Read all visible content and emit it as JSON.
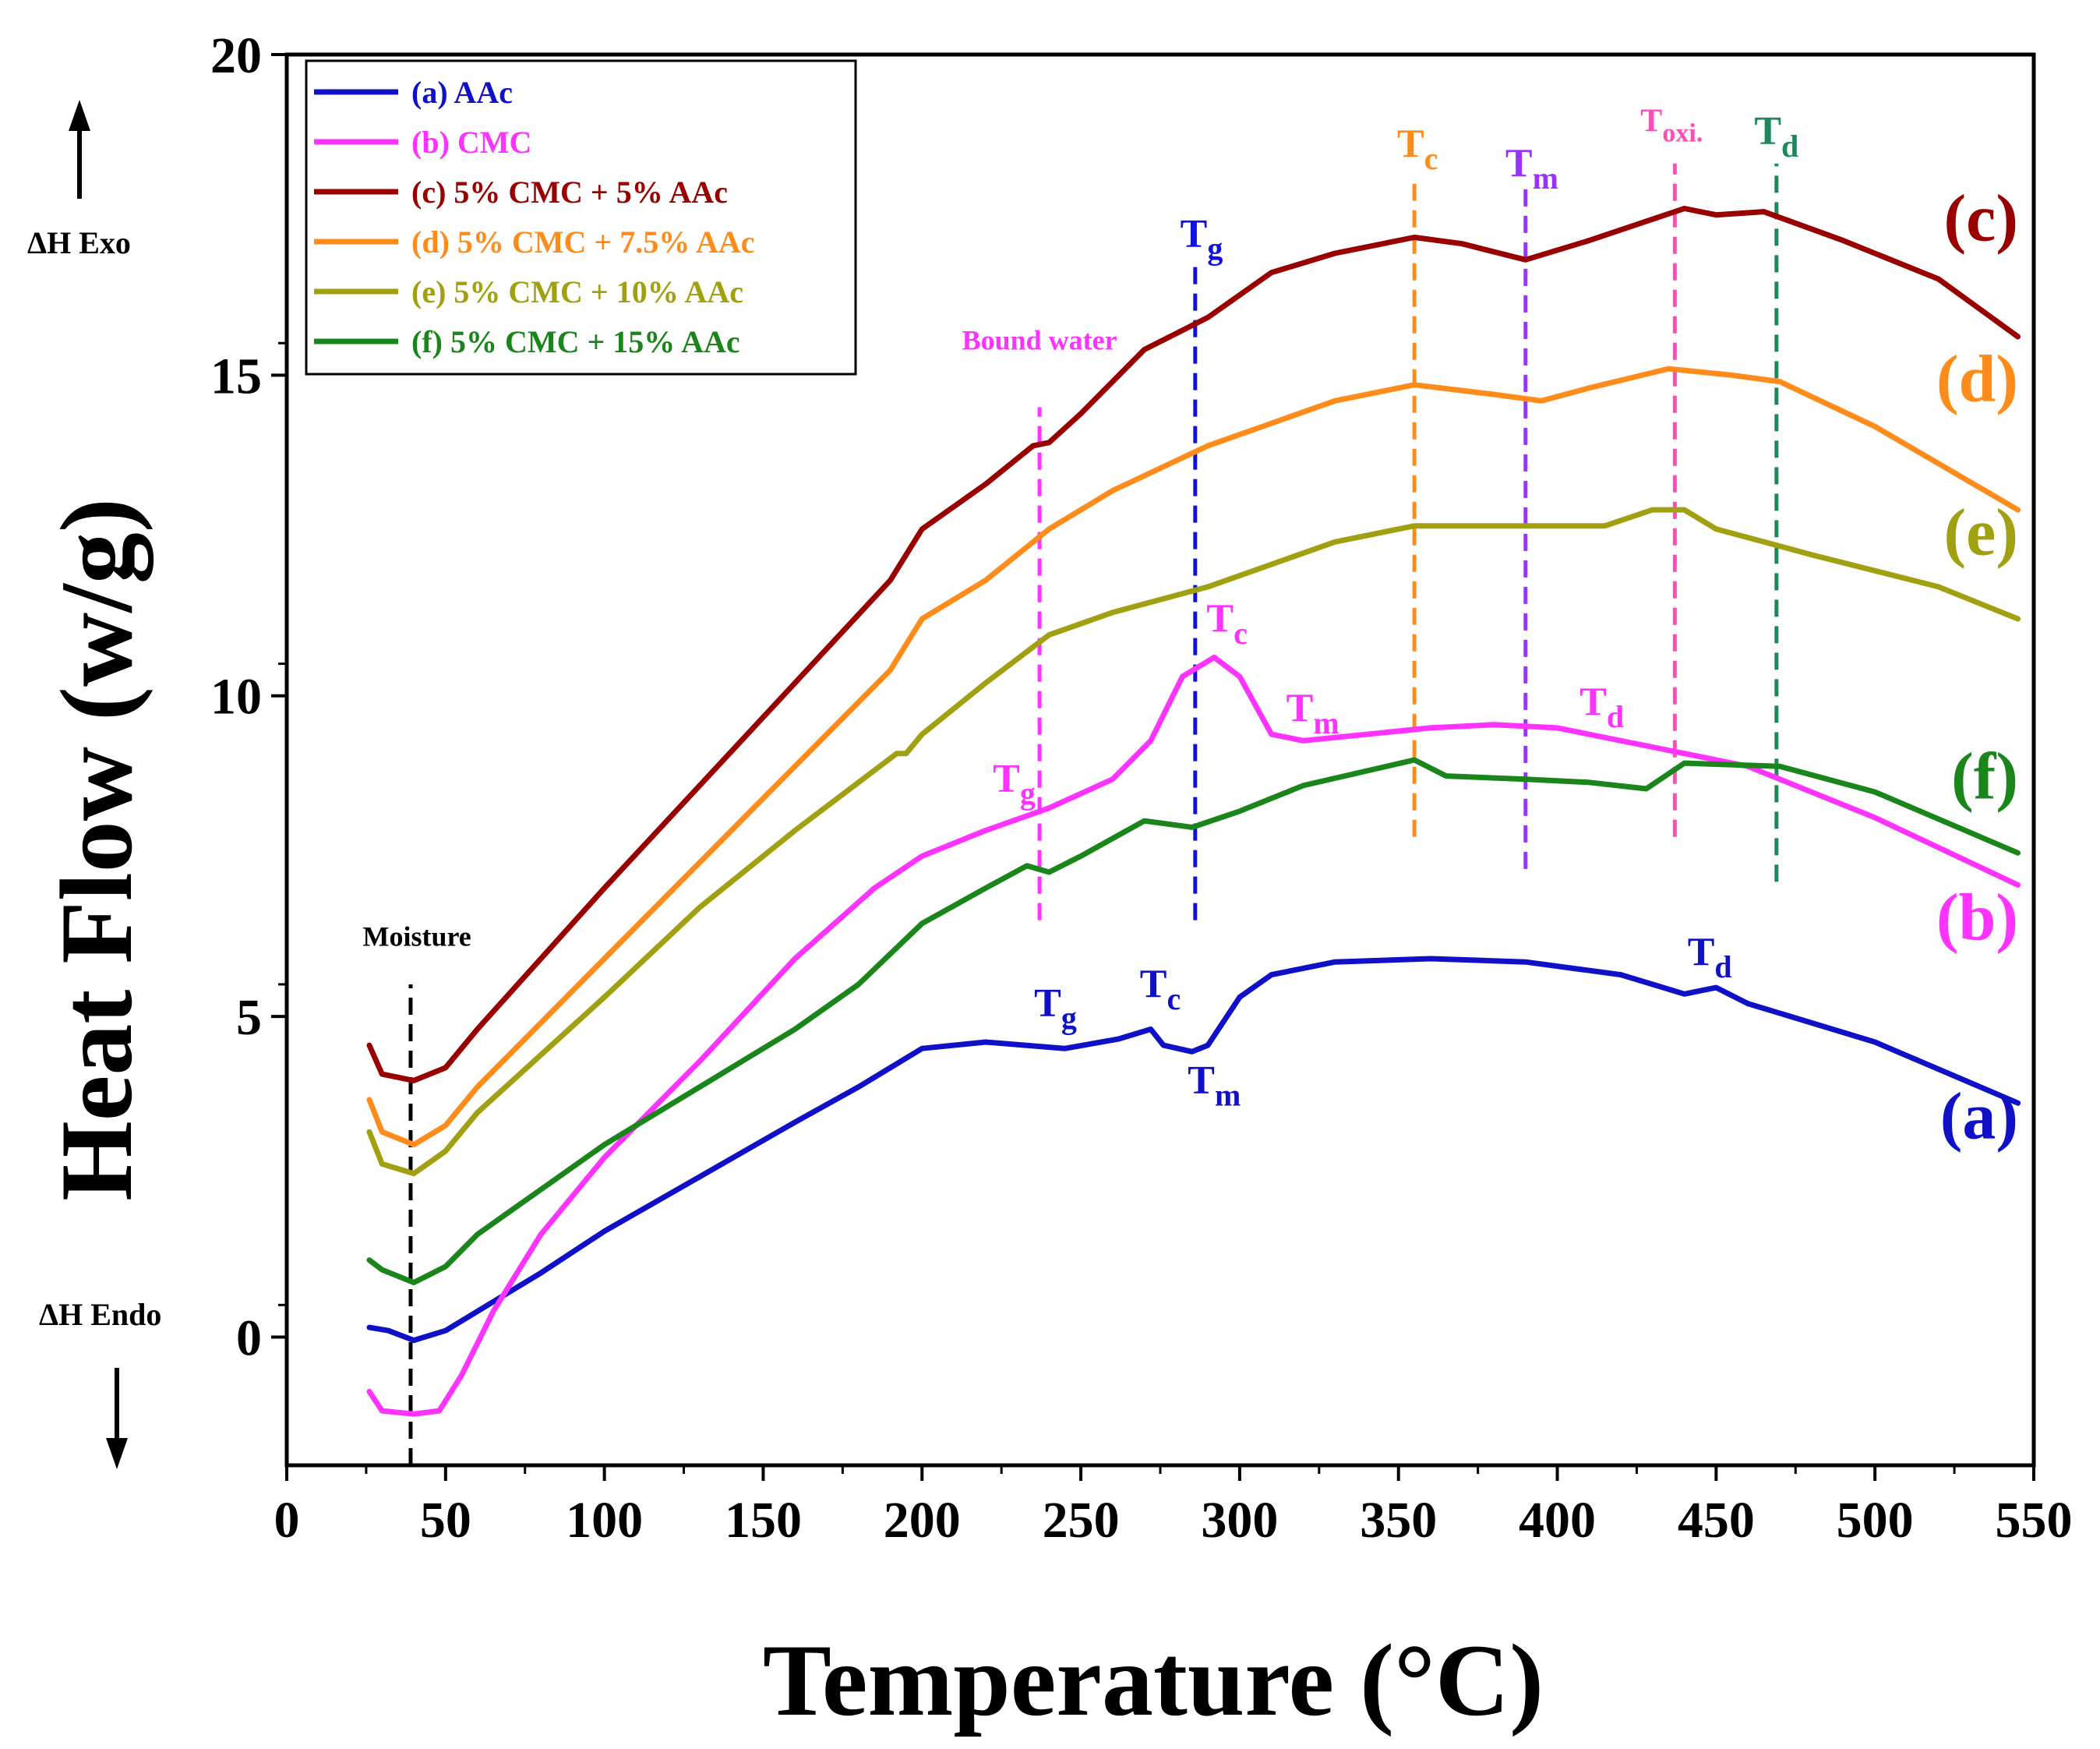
{
  "chart_data": {
    "type": "line",
    "xlabel": "Temperature (°C)",
    "ylabel": "Heat Flow (w/g)",
    "xlim": [
      0,
      550
    ],
    "ylim": [
      -2,
      20
    ],
    "xticks": [
      0,
      50,
      100,
      150,
      200,
      250,
      300,
      350,
      400,
      450,
      500,
      550
    ],
    "yticks": [
      0,
      5,
      10,
      15,
      20
    ],
    "grid": false,
    "legend_position": "top-left",
    "direction_labels": {
      "exo": "ΔH Exo",
      "endo": "ΔH Endo"
    },
    "series": [
      {
        "id": "a",
        "name": "(a) AAc",
        "end_label": "(a)",
        "color": "#1010c8",
        "label_y": 3.1,
        "points": [
          [
            26,
            0.15
          ],
          [
            32,
            0.1
          ],
          [
            40,
            -0.05
          ],
          [
            50,
            0.1
          ],
          [
            60,
            0.4
          ],
          [
            80,
            1.0
          ],
          [
            100,
            1.65
          ],
          [
            130,
            2.5
          ],
          [
            160,
            3.35
          ],
          [
            180,
            3.9
          ],
          [
            200,
            4.5
          ],
          [
            220,
            4.6
          ],
          [
            245,
            4.5
          ],
          [
            262,
            4.65
          ],
          [
            272,
            4.8
          ],
          [
            276,
            4.55
          ],
          [
            285,
            4.45
          ],
          [
            290,
            4.55
          ],
          [
            300,
            5.3
          ],
          [
            310,
            5.65
          ],
          [
            330,
            5.85
          ],
          [
            360,
            5.9
          ],
          [
            390,
            5.85
          ],
          [
            420,
            5.65
          ],
          [
            440,
            5.35
          ],
          [
            450,
            5.45
          ],
          [
            460,
            5.2
          ],
          [
            500,
            4.6
          ],
          [
            545,
            3.65
          ]
        ]
      },
      {
        "id": "b",
        "name": "(b) CMC",
        "end_label": "(b)",
        "color": "#ff33ff",
        "label_y": 6.2,
        "points": [
          [
            26,
            -0.85
          ],
          [
            30,
            -1.15
          ],
          [
            40,
            -1.2
          ],
          [
            48,
            -1.15
          ],
          [
            55,
            -0.6
          ],
          [
            65,
            0.4
          ],
          [
            80,
            1.6
          ],
          [
            100,
            2.8
          ],
          [
            130,
            4.3
          ],
          [
            160,
            5.9
          ],
          [
            185,
            7.0
          ],
          [
            200,
            7.5
          ],
          [
            220,
            7.9
          ],
          [
            240,
            8.25
          ],
          [
            260,
            8.7
          ],
          [
            272,
            9.3
          ],
          [
            282,
            10.3
          ],
          [
            292,
            10.6
          ],
          [
            300,
            10.3
          ],
          [
            310,
            9.4
          ],
          [
            320,
            9.3
          ],
          [
            360,
            9.5
          ],
          [
            380,
            9.55
          ],
          [
            400,
            9.5
          ],
          [
            430,
            9.2
          ],
          [
            460,
            8.9
          ],
          [
            500,
            8.1
          ],
          [
            545,
            7.05
          ]
        ]
      },
      {
        "id": "c",
        "name": "(c) 5% CMC + 5% AAc",
        "end_label": "(c)",
        "color": "#990000",
        "label_y": 17.1,
        "points": [
          [
            26,
            4.55
          ],
          [
            30,
            4.1
          ],
          [
            40,
            4.0
          ],
          [
            50,
            4.2
          ],
          [
            60,
            4.8
          ],
          [
            80,
            5.9
          ],
          [
            100,
            7.0
          ],
          [
            130,
            8.6
          ],
          [
            160,
            10.2
          ],
          [
            190,
            11.8
          ],
          [
            200,
            12.6
          ],
          [
            220,
            13.3
          ],
          [
            235,
            13.9
          ],
          [
            240,
            13.95
          ],
          [
            250,
            14.4
          ],
          [
            270,
            15.4
          ],
          [
            290,
            15.9
          ],
          [
            310,
            16.6
          ],
          [
            330,
            16.9
          ],
          [
            355,
            17.15
          ],
          [
            370,
            17.05
          ],
          [
            390,
            16.8
          ],
          [
            410,
            17.1
          ],
          [
            440,
            17.6
          ],
          [
            450,
            17.5
          ],
          [
            465,
            17.55
          ],
          [
            490,
            17.1
          ],
          [
            520,
            16.5
          ],
          [
            545,
            15.6
          ]
        ]
      },
      {
        "id": "d",
        "name": "(d) 5% CMC + 7.5% AAc",
        "end_label": "(d)",
        "color": "#ff8c1a",
        "label_y": 14.6,
        "points": [
          [
            26,
            3.7
          ],
          [
            30,
            3.2
          ],
          [
            40,
            3.0
          ],
          [
            50,
            3.3
          ],
          [
            60,
            3.9
          ],
          [
            80,
            4.9
          ],
          [
            100,
            5.9
          ],
          [
            130,
            7.4
          ],
          [
            160,
            8.9
          ],
          [
            190,
            10.4
          ],
          [
            200,
            11.2
          ],
          [
            220,
            11.8
          ],
          [
            240,
            12.6
          ],
          [
            260,
            13.2
          ],
          [
            290,
            13.9
          ],
          [
            330,
            14.6
          ],
          [
            355,
            14.85
          ],
          [
            380,
            14.7
          ],
          [
            395,
            14.6
          ],
          [
            410,
            14.8
          ],
          [
            435,
            15.1
          ],
          [
            455,
            15.0
          ],
          [
            470,
            14.9
          ],
          [
            500,
            14.2
          ],
          [
            545,
            12.9
          ]
        ]
      },
      {
        "id": "e",
        "name": "(e) 5% CMC + 10% AAc",
        "end_label": "(e)",
        "color": "#a0a010",
        "label_y": 12.2,
        "points": [
          [
            26,
            3.2
          ],
          [
            30,
            2.7
          ],
          [
            40,
            2.55
          ],
          [
            50,
            2.9
          ],
          [
            60,
            3.5
          ],
          [
            80,
            4.4
          ],
          [
            100,
            5.3
          ],
          [
            130,
            6.7
          ],
          [
            160,
            7.9
          ],
          [
            192,
            9.1
          ],
          [
            195,
            9.1
          ],
          [
            200,
            9.4
          ],
          [
            220,
            10.2
          ],
          [
            240,
            10.95
          ],
          [
            260,
            11.3
          ],
          [
            290,
            11.7
          ],
          [
            330,
            12.4
          ],
          [
            355,
            12.65
          ],
          [
            390,
            12.65
          ],
          [
            415,
            12.65
          ],
          [
            430,
            12.9
          ],
          [
            440,
            12.9
          ],
          [
            450,
            12.6
          ],
          [
            480,
            12.2
          ],
          [
            520,
            11.7
          ],
          [
            545,
            11.2
          ]
        ]
      },
      {
        "id": "f",
        "name": "(f) 5% CMC + 15% AAc",
        "end_label": "(f)",
        "color": "#1a851a",
        "label_y": 8.4,
        "points": [
          [
            26,
            1.2
          ],
          [
            30,
            1.05
          ],
          [
            40,
            0.85
          ],
          [
            50,
            1.1
          ],
          [
            60,
            1.6
          ],
          [
            80,
            2.3
          ],
          [
            100,
            3.0
          ],
          [
            130,
            3.9
          ],
          [
            160,
            4.8
          ],
          [
            180,
            5.5
          ],
          [
            200,
            6.45
          ],
          [
            220,
            7.0
          ],
          [
            233,
            7.35
          ],
          [
            240,
            7.25
          ],
          [
            250,
            7.5
          ],
          [
            270,
            8.05
          ],
          [
            285,
            7.95
          ],
          [
            300,
            8.2
          ],
          [
            320,
            8.6
          ],
          [
            355,
            9.0
          ],
          [
            365,
            8.75
          ],
          [
            390,
            8.7
          ],
          [
            410,
            8.65
          ],
          [
            428,
            8.55
          ],
          [
            440,
            8.95
          ],
          [
            470,
            8.9
          ],
          [
            500,
            8.5
          ],
          [
            545,
            7.55
          ]
        ]
      }
    ],
    "vertical_markers": [
      {
        "name": "Moisture",
        "x": 39,
        "y_from": -2.0,
        "y_to": 5.5,
        "color": "#000000"
      },
      {
        "name": "Bound water",
        "x": 237,
        "y_from": 6.5,
        "y_to": 14.5,
        "color": "#ff33ff"
      },
      {
        "name": "Tg",
        "x": 286,
        "y_from": 6.5,
        "y_to": 16.7,
        "color": "#1010e0"
      },
      {
        "name": "Tc",
        "x": 355,
        "y_from": 7.8,
        "y_to": 18.0,
        "color": "#ff8c1a"
      },
      {
        "name": "Tm",
        "x": 390,
        "y_from": 7.3,
        "y_to": 17.9,
        "color": "#9933ff"
      },
      {
        "name": "Toxi.",
        "x": 437,
        "y_from": 7.8,
        "y_to": 18.3,
        "color": "#ff4db8"
      },
      {
        "name": "Td",
        "x": 469,
        "y_from": 7.1,
        "y_to": 18.3,
        "color": "#1a8a5a"
      }
    ],
    "annotations": [
      {
        "main": "Moisture",
        "sub": "",
        "x": 41,
        "y": 6.1,
        "color": "#000000",
        "size": "small"
      },
      {
        "main": "Bound water",
        "sub": "",
        "x": 237,
        "y": 15.4,
        "color": "#ff33ff",
        "size": "small"
      },
      {
        "main": "T",
        "sub": "g",
        "x": 288,
        "y": 17.0,
        "color": "#1010e0",
        "size": "large"
      },
      {
        "main": "T",
        "sub": "c",
        "x": 356,
        "y": 18.4,
        "color": "#ff8c1a",
        "size": "large"
      },
      {
        "main": "T",
        "sub": "m",
        "x": 392,
        "y": 18.1,
        "color": "#9933ff",
        "size": "large"
      },
      {
        "main": "T",
        "sub": "oxi.",
        "x": 436,
        "y": 18.8,
        "color": "#ff4db8",
        "size": "medium"
      },
      {
        "main": "T",
        "sub": "d",
        "x": 469,
        "y": 18.6,
        "color": "#1a8a5a",
        "size": "large"
      },
      {
        "main": "T",
        "sub": "g",
        "x": 229,
        "y": 8.5,
        "color": "#ff33ff",
        "size": "large"
      },
      {
        "main": "T",
        "sub": "c",
        "x": 296,
        "y": 11.0,
        "color": "#ff33ff",
        "size": "large"
      },
      {
        "main": "T",
        "sub": "m",
        "x": 323,
        "y": 9.6,
        "color": "#ff33ff",
        "size": "large"
      },
      {
        "main": "T",
        "sub": "d",
        "x": 414,
        "y": 9.7,
        "color": "#ff33ff",
        "size": "large"
      },
      {
        "main": "T",
        "sub": "g",
        "x": 242,
        "y": 5.0,
        "color": "#1010c8",
        "size": "large"
      },
      {
        "main": "T",
        "sub": "c",
        "x": 275,
        "y": 5.3,
        "color": "#1010c8",
        "size": "large"
      },
      {
        "main": "T",
        "sub": "m",
        "x": 292,
        "y": 3.8,
        "color": "#1010c8",
        "size": "large"
      },
      {
        "main": "T",
        "sub": "d",
        "x": 448,
        "y": 5.8,
        "color": "#1010c8",
        "size": "large"
      }
    ]
  }
}
